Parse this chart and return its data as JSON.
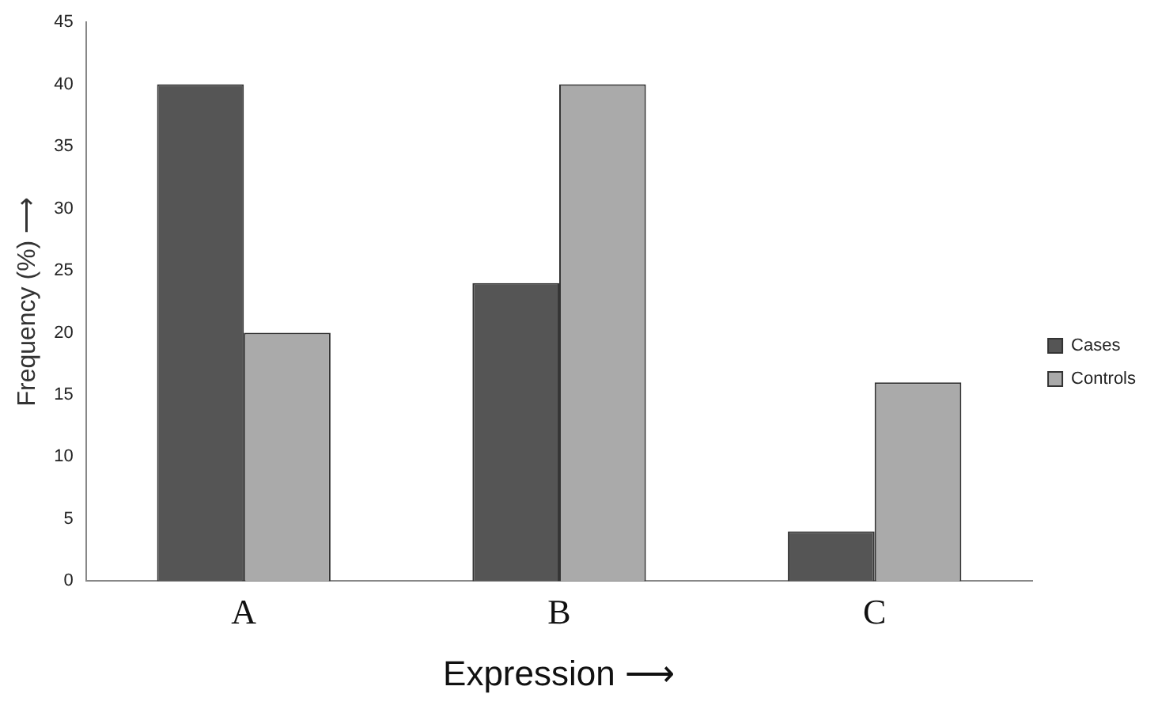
{
  "chart_data": {
    "type": "bar",
    "xlabel": "Expression ⟶",
    "ylabel": "Frequency (%) ⟶",
    "categories": [
      "A",
      "B",
      "C"
    ],
    "series": [
      {
        "name": "Cases",
        "color": "#555555",
        "values": [
          40,
          24,
          4
        ]
      },
      {
        "name": "Controls",
        "color": "#aaaaaa",
        "values": [
          20,
          40,
          16
        ]
      }
    ],
    "ylim": [
      0,
      45
    ],
    "yticks": [
      0,
      5,
      10,
      15,
      20,
      25,
      30,
      35,
      40,
      45
    ],
    "grid": false,
    "legend": "right"
  }
}
